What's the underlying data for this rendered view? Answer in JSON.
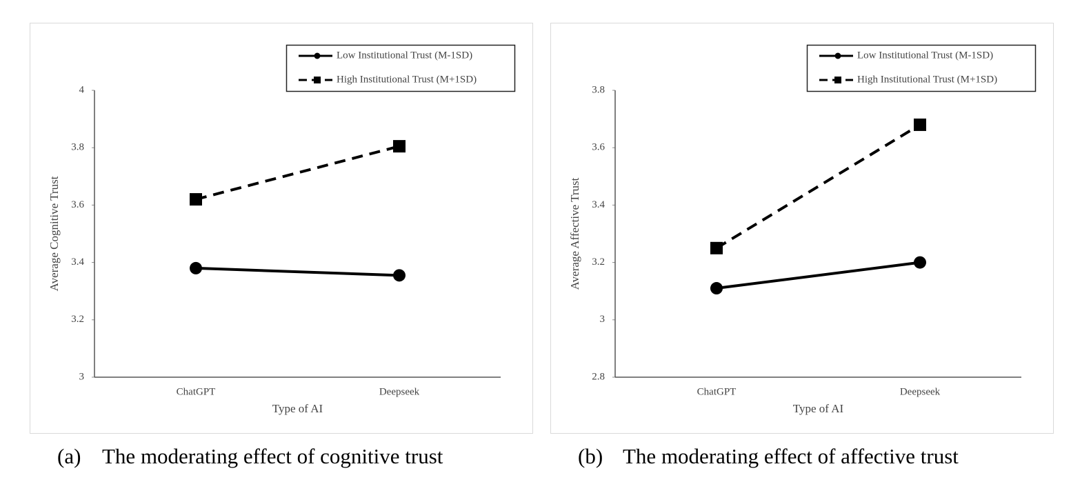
{
  "chart_data": [
    {
      "type": "line",
      "x_label": "Type of AI",
      "y_label": "Average Cognitive Trust",
      "categories": [
        "ChatGPT",
        "Deepseek"
      ],
      "series": [
        {
          "name": "Low Institutional Trust (M-1SD)",
          "color": "#000000",
          "marker": "circle",
          "dash": false,
          "values": [
            3.38,
            3.355
          ]
        },
        {
          "name": "High Institutional Trust (M+1SD)",
          "color": "#000000",
          "marker": "square",
          "dash": true,
          "values": [
            3.62,
            3.805
          ]
        }
      ],
      "ylim": [
        3,
        4
      ],
      "yticks": [
        3,
        3.2,
        3.4,
        3.6,
        3.8,
        4
      ],
      "legend": "upper right",
      "caption_label": "(a)",
      "caption": "The moderating effect of cognitive trust"
    },
    {
      "type": "line",
      "x_label": "Type of AI",
      "y_label": "Average Affective Trust",
      "categories": [
        "ChatGPT",
        "Deepseek"
      ],
      "series": [
        {
          "name": "Low Institutional Trust (M-1SD)",
          "color": "#000000",
          "marker": "circle",
          "dash": false,
          "values": [
            3.11,
            3.2
          ]
        },
        {
          "name": "High Institutional Trust (M+1SD)",
          "color": "#000000",
          "marker": "square",
          "dash": true,
          "values": [
            3.25,
            3.68
          ]
        }
      ],
      "ylim": [
        2.8,
        3.8
      ],
      "yticks": [
        2.8,
        3,
        3.2,
        3.4,
        3.6,
        3.8
      ],
      "legend": "upper right",
      "caption_label": "(b)",
      "caption": "The moderating effect of affective trust"
    }
  ]
}
